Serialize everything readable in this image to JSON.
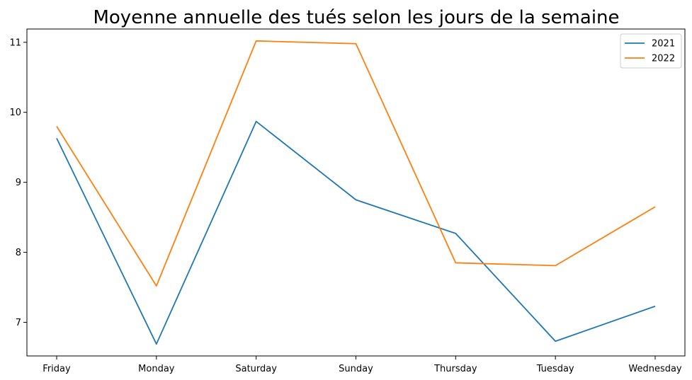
{
  "chart_data": {
    "type": "line",
    "title": "Moyenne annuelle des tués selon les jours de la semaine",
    "xlabel": "",
    "ylabel": "",
    "categories": [
      "Friday",
      "Monday",
      "Saturday",
      "Sunday",
      "Thursday",
      "Tuesday",
      "Wednesday"
    ],
    "series": [
      {
        "name": "2021",
        "color": "#1f77b4",
        "values": [
          9.63,
          6.69,
          9.87,
          8.75,
          8.27,
          6.73,
          7.23
        ]
      },
      {
        "name": "2022",
        "color": "#ff7f0e",
        "values": [
          9.8,
          7.52,
          11.02,
          10.98,
          7.85,
          7.81,
          8.65
        ]
      }
    ],
    "ylim": [
      6.52,
      11.19
    ],
    "yticks": [
      7,
      8,
      9,
      10,
      11
    ],
    "grid": false,
    "legend_position": "top-right"
  }
}
